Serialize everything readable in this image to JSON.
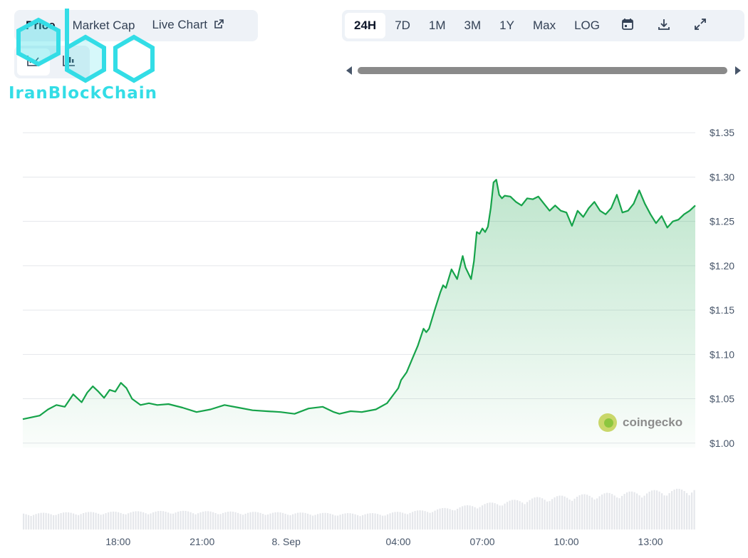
{
  "tabs": [
    {
      "label": "Price",
      "active": true
    },
    {
      "label": "Market Cap",
      "active": false
    },
    {
      "label": "Live Chart",
      "active": false
    }
  ],
  "watermark_logo": {
    "text": "IranBlockChain",
    "color": "#33dde6"
  },
  "ranges": [
    {
      "label": "24H",
      "active": true
    },
    {
      "label": "7D",
      "active": false
    },
    {
      "label": "1M",
      "active": false
    },
    {
      "label": "3M",
      "active": false
    },
    {
      "label": "1Y",
      "active": false
    },
    {
      "label": "Max",
      "active": false
    },
    {
      "label": "LOG",
      "active": false
    }
  ],
  "toolbar_icons": [
    "calendar-icon",
    "download-icon",
    "expand-icon"
  ],
  "chart_type_icons": [
    "line-chart-icon",
    "candlestick-icon"
  ],
  "colors": {
    "line": "#16a34a",
    "area_top": "#16a34a",
    "volume": "#e5e7eb",
    "grid": "#e5e7eb"
  },
  "brand": {
    "text": "coingecko"
  },
  "chart_data": {
    "type": "area",
    "y_axis_position": "right",
    "ylim": [
      0.995,
      1.355
    ],
    "yticks": [
      {
        "value": 1.35,
        "label": "$1.35"
      },
      {
        "value": 1.3,
        "label": "$1.30"
      },
      {
        "value": 1.25,
        "label": "$1.25"
      },
      {
        "value": 1.2,
        "label": "$1.20"
      },
      {
        "value": 1.15,
        "label": "$1.15"
      },
      {
        "value": 1.1,
        "label": "$1.10"
      },
      {
        "value": 1.05,
        "label": "$1.05"
      },
      {
        "value": 1.0,
        "label": "$1.00"
      }
    ],
    "xlim": [
      14.6,
      38.6
    ],
    "xticks": [
      {
        "value": 18,
        "label": "18:00"
      },
      {
        "value": 21,
        "label": "21:00"
      },
      {
        "value": 24,
        "label": "8. Sep"
      },
      {
        "value": 28,
        "label": "04:00"
      },
      {
        "value": 31,
        "label": "07:00"
      },
      {
        "value": 34,
        "label": "10:00"
      },
      {
        "value": 37,
        "label": "13:00"
      }
    ],
    "grid": true,
    "x_unit": "hours since 00:00 of the previous day",
    "series": [
      {
        "name": "Price",
        "x": [
          14.6,
          14.9,
          15.2,
          15.5,
          15.8,
          16.1,
          16.4,
          16.7,
          16.9,
          17.1,
          17.3,
          17.5,
          17.7,
          17.9,
          18.1,
          18.3,
          18.5,
          18.8,
          19.1,
          19.4,
          19.8,
          20.3,
          20.8,
          21.3,
          21.8,
          22.3,
          22.8,
          23.3,
          23.8,
          24.3,
          24.8,
          25.3,
          25.7,
          25.9,
          26.3,
          26.7,
          27.2,
          27.6,
          28.0,
          28.1,
          28.3,
          28.5,
          28.7,
          28.9,
          29.0,
          29.1,
          29.3,
          29.5,
          29.6,
          29.7,
          29.9,
          30.1,
          30.3,
          30.4,
          30.6,
          30.7,
          30.8,
          30.9,
          31.0,
          31.1,
          31.2,
          31.3,
          31.4,
          31.5,
          31.6,
          31.7,
          31.8,
          32.0,
          32.2,
          32.4,
          32.6,
          32.8,
          33.0,
          33.2,
          33.4,
          33.6,
          33.8,
          34.0,
          34.2,
          34.4,
          34.6,
          34.8,
          35.0,
          35.2,
          35.4,
          35.6,
          35.8,
          36.0,
          36.2,
          36.4,
          36.6,
          36.8,
          37.0,
          37.2,
          37.4,
          37.6,
          37.8,
          38.0,
          38.2,
          38.4,
          38.6
        ],
        "y": [
          1.027,
          1.029,
          1.031,
          1.038,
          1.043,
          1.041,
          1.055,
          1.046,
          1.057,
          1.064,
          1.058,
          1.051,
          1.06,
          1.058,
          1.068,
          1.062,
          1.05,
          1.043,
          1.045,
          1.043,
          1.044,
          1.04,
          1.035,
          1.038,
          1.043,
          1.04,
          1.037,
          1.036,
          1.035,
          1.033,
          1.039,
          1.041,
          1.035,
          1.033,
          1.036,
          1.035,
          1.038,
          1.045,
          1.062,
          1.071,
          1.08,
          1.095,
          1.11,
          1.129,
          1.125,
          1.129,
          1.15,
          1.17,
          1.178,
          1.175,
          1.196,
          1.185,
          1.211,
          1.198,
          1.185,
          1.205,
          1.238,
          1.236,
          1.242,
          1.238,
          1.244,
          1.265,
          1.294,
          1.297,
          1.28,
          1.276,
          1.279,
          1.278,
          1.272,
          1.268,
          1.276,
          1.275,
          1.278,
          1.27,
          1.262,
          1.268,
          1.262,
          1.26,
          1.245,
          1.262,
          1.255,
          1.265,
          1.272,
          1.262,
          1.258,
          1.265,
          1.28,
          1.26,
          1.262,
          1.27,
          1.285,
          1.27,
          1.258,
          1.248,
          1.256,
          1.243,
          1.25,
          1.252,
          1.258,
          1.262,
          1.268
        ]
      }
    ],
    "volume": {
      "x": [
        14.6,
        16.0,
        18.0,
        20.0,
        22.0,
        24.0,
        26.0,
        27.5,
        28.0,
        29.0,
        30.0,
        31.0,
        32.0,
        33.0,
        34.0,
        35.0,
        36.0,
        37.0,
        38.0,
        38.6
      ],
      "values": [
        20,
        21,
        22,
        23,
        22,
        21,
        20,
        20,
        22,
        24,
        28,
        32,
        36,
        40,
        42,
        44,
        46,
        48,
        50,
        52
      ]
    }
  }
}
